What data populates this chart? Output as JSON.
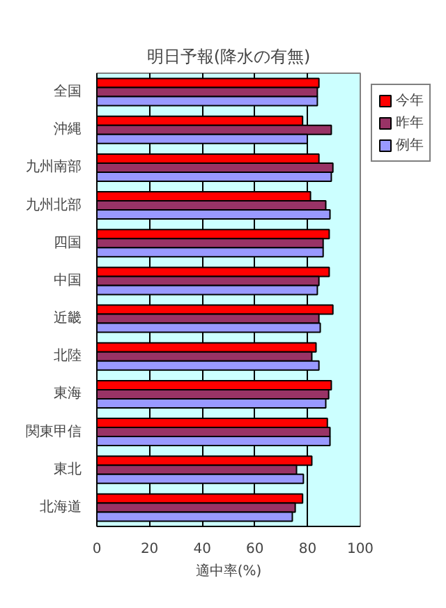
{
  "chart_data": {
    "type": "bar",
    "orientation": "horizontal",
    "title": "明日予報(降水の有無)",
    "xlabel": "適中率(%)",
    "categories": [
      "全国",
      "沖縄",
      "九州南部",
      "九州北部",
      "四国",
      "中国",
      "近畿",
      "北陸",
      "東海",
      "関東甲信",
      "東北",
      "北海道"
    ],
    "series": [
      {
        "name": "今年",
        "color": "#ff0000",
        "values": [
          84.3,
          78.1,
          84.3,
          81.1,
          88.2,
          88.2,
          89.6,
          83.2,
          89.0,
          87.5,
          81.6,
          78.1
        ]
      },
      {
        "name": "昨年",
        "color": "#993366",
        "values": [
          83.7,
          89.0,
          89.6,
          86.9,
          85.9,
          84.3,
          84.3,
          81.6,
          88.0,
          88.5,
          75.8,
          75.3
        ]
      },
      {
        "name": "例年",
        "color": "#9999ff",
        "values": [
          83.7,
          79.9,
          89.0,
          88.5,
          85.9,
          83.7,
          84.8,
          84.3,
          86.9,
          88.5,
          78.4,
          74.2
        ]
      }
    ],
    "xlim": [
      0,
      100
    ],
    "xticks": [
      0,
      20,
      40,
      60,
      80,
      100
    ],
    "grid": "x",
    "legend": "top right"
  }
}
